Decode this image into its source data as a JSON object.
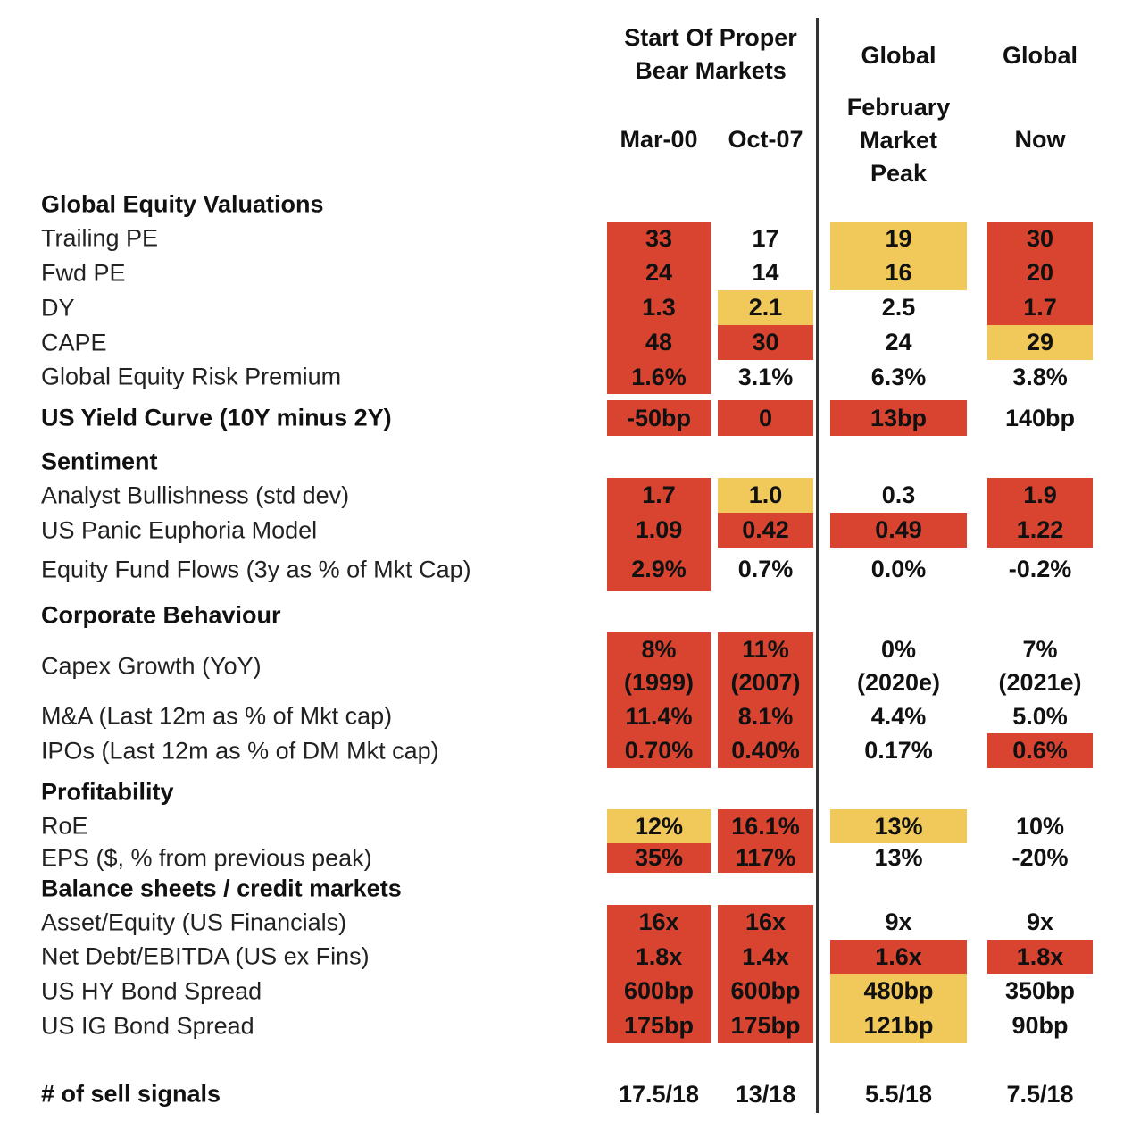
{
  "chart_data": {
    "type": "table",
    "colors": {
      "red": "#d94430",
      "yellow": "#f0c95a"
    },
    "header": {
      "group1": [
        "Start Of Proper",
        "Bear Markets"
      ],
      "group2": "Global",
      "group3": "Global",
      "columns": [
        [
          "Mar-00"
        ],
        [
          "Oct-07"
        ],
        [
          "February",
          "Market",
          "Peak"
        ],
        [
          "Now"
        ]
      ]
    },
    "sections": [
      {
        "title": "Global Equity Valuations"
      },
      {
        "title": "Sentiment"
      },
      {
        "title": "Corporate Behaviour"
      },
      {
        "title": "Profitability"
      },
      {
        "title": "Balance sheets / credit markets"
      }
    ],
    "rows": [
      {
        "label": "Trailing PE",
        "values": [
          "33",
          "17",
          "19",
          "30"
        ],
        "signal": [
          "red",
          "",
          "yellow",
          "red"
        ]
      },
      {
        "label": "Fwd PE",
        "values": [
          "24",
          "14",
          "16",
          "20"
        ],
        "signal": [
          "red",
          "",
          "yellow",
          "red"
        ]
      },
      {
        "label": "DY",
        "values": [
          "1.3",
          "2.1",
          "2.5",
          "1.7"
        ],
        "signal": [
          "red",
          "yellow",
          "",
          "red"
        ]
      },
      {
        "label": "CAPE",
        "values": [
          "48",
          "30",
          "24",
          "29"
        ],
        "signal": [
          "red",
          "red",
          "",
          "yellow"
        ]
      },
      {
        "label": "Global Equity Risk Premium",
        "values": [
          "1.6%",
          "3.1%",
          "6.3%",
          "3.8%"
        ],
        "signal": [
          "red",
          "",
          "",
          ""
        ]
      },
      {
        "label": "US Yield Curve (10Y minus 2Y)",
        "bold": true,
        "values": [
          "-50bp",
          "0",
          "13bp",
          "140bp"
        ],
        "signal": [
          "red",
          "red",
          "red",
          ""
        ]
      },
      {
        "label": "Analyst Bullishness (std dev)",
        "values": [
          "1.7",
          "1.0",
          "0.3",
          "1.9"
        ],
        "signal": [
          "red",
          "yellow",
          "",
          "red"
        ]
      },
      {
        "label": "US Panic Euphoria Model",
        "values": [
          "1.09",
          "0.42",
          "0.49",
          "1.22"
        ],
        "signal": [
          "red",
          "red",
          "red",
          "red"
        ]
      },
      {
        "label": "Equity Fund Flows (3y as % of Mkt Cap)",
        "values": [
          "2.9%",
          "0.7%",
          "0.0%",
          "-0.2%"
        ],
        "signal": [
          "red",
          "",
          "",
          ""
        ]
      },
      {
        "label": "Capex Growth (YoY)",
        "values": [
          "8%\n(1999)",
          "11%\n(2007)",
          "0%\n(2020e)",
          "7%\n(2021e)"
        ],
        "signal": [
          "red",
          "red",
          "",
          ""
        ]
      },
      {
        "label": "M&A (Last 12m as % of Mkt cap)",
        "values": [
          "11.4%",
          "8.1%",
          "4.4%",
          "5.0%"
        ],
        "signal": [
          "red",
          "red",
          "",
          ""
        ]
      },
      {
        "label": "IPOs (Last 12m as % of DM Mkt cap)",
        "values": [
          "0.70%",
          "0.40%",
          "0.17%",
          "0.6%"
        ],
        "signal": [
          "red",
          "red",
          "",
          "red"
        ]
      },
      {
        "label": "RoE",
        "values": [
          "12%",
          "16.1%",
          "13%",
          "10%"
        ],
        "signal": [
          "yellow",
          "red",
          "yellow",
          ""
        ]
      },
      {
        "label": "EPS  ($, % from previous peak)",
        "values": [
          "35%",
          "117%",
          "13%",
          "-20%"
        ],
        "signal": [
          "red",
          "red",
          "",
          ""
        ]
      },
      {
        "label": "Asset/Equity (US Financials)",
        "values": [
          "16x",
          "16x",
          "9x",
          "9x"
        ],
        "signal": [
          "red",
          "red",
          "",
          ""
        ]
      },
      {
        "label": "Net Debt/EBITDA (US ex Fins)",
        "values": [
          "1.8x",
          "1.4x",
          "1.6x",
          "1.8x"
        ],
        "signal": [
          "red",
          "red",
          "red",
          "red"
        ]
      },
      {
        "label": "US HY Bond Spread",
        "values": [
          "600bp",
          "600bp",
          "480bp",
          "350bp"
        ],
        "signal": [
          "red",
          "red",
          "yellow",
          ""
        ]
      },
      {
        "label": "US IG Bond Spread",
        "values": [
          "175bp",
          "175bp",
          "121bp",
          "90bp"
        ],
        "signal": [
          "red",
          "red",
          "yellow",
          ""
        ]
      },
      {
        "label": "# of sell signals",
        "bold": true,
        "values": [
          "17.5/18",
          "13/18",
          "5.5/18",
          "7.5/18"
        ],
        "signal": [
          "",
          "",
          "",
          ""
        ]
      }
    ]
  }
}
